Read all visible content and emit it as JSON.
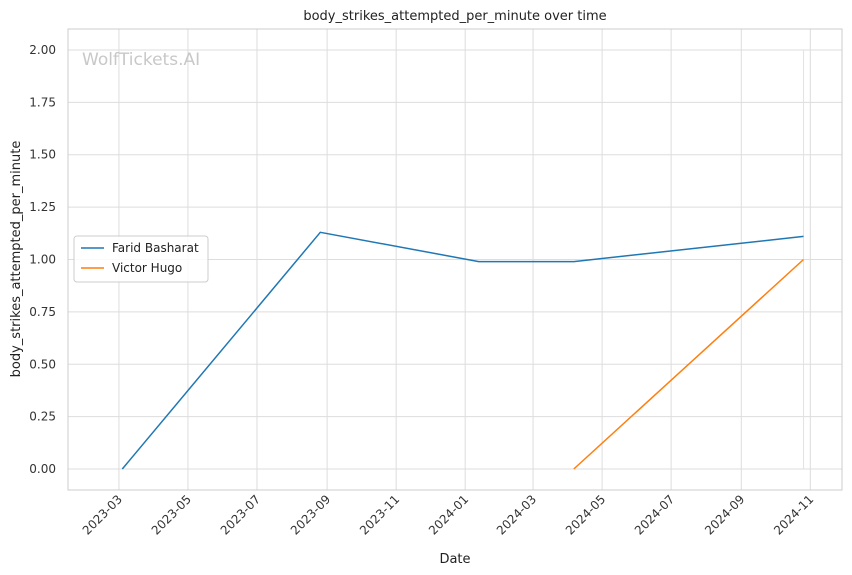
{
  "chart_data": {
    "type": "line",
    "title": "body_strikes_attempted_per_minute over time",
    "xlabel": "Date",
    "ylabel": "body_strikes_attempted_per_minute",
    "watermark": "WolfTickets.AI",
    "xlim": [
      "2023-01-15",
      "2024-11-29"
    ],
    "ylim": [
      -0.1,
      2.1
    ],
    "x_ticks": [
      "2023-03",
      "2023-05",
      "2023-07",
      "2023-09",
      "2023-11",
      "2024-01",
      "2024-03",
      "2024-05",
      "2024-07",
      "2024-09",
      "2024-11"
    ],
    "y_ticks": [
      "0.00",
      "0.25",
      "0.50",
      "0.75",
      "1.00",
      "1.25",
      "1.50",
      "1.75",
      "2.00"
    ],
    "grid": true,
    "legend_position": "center-left",
    "series": [
      {
        "name": "Farid Basharat",
        "color": "#1f77b4",
        "points": [
          {
            "x": "2023-03-04",
            "y": 0.0
          },
          {
            "x": "2023-08-26",
            "y": 1.13
          },
          {
            "x": "2024-01-13",
            "y": 0.99
          },
          {
            "x": "2024-04-06",
            "y": 0.99
          },
          {
            "x": "2024-10-26",
            "y": 1.11
          }
        ]
      },
      {
        "name": "Victor Hugo",
        "color": "#ff7f0e",
        "points": [
          {
            "x": "2024-04-06",
            "y": 0.0
          },
          {
            "x": "2024-10-26",
            "y": 1.0
          }
        ]
      }
    ],
    "marker_line": {
      "x": "2024-10-26",
      "y_range": [
        0.0,
        2.0
      ],
      "color": "#ffd9c2"
    }
  }
}
